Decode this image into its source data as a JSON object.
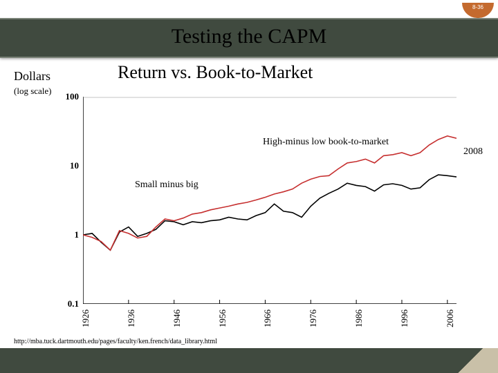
{
  "page_number": "8-36",
  "title": "Testing the CAPM",
  "subtitle": "Return vs. Book-to-Market",
  "y_axis": {
    "label": "Dollars",
    "sublabel": "(log scale)"
  },
  "annotations": {
    "hml": "High-minus low book-to-market",
    "smb": "Small minus big",
    "year_right": "2008"
  },
  "source": "http://mba.tuck.dartmouth.edu/pages/faculty/ken.french/data_library.html",
  "colors": {
    "header": "#404a3f",
    "page_cap": "#c46a2e",
    "series_hml": "#c62f2f",
    "series_smb": "#000000",
    "axis": "#000000",
    "bg": "#ffffff"
  },
  "chart": {
    "type": "line",
    "x_range": [
      1926,
      2008
    ],
    "y_log_range": [
      0.1,
      100
    ],
    "y_ticks": [
      0.1,
      1,
      10,
      100
    ],
    "x_ticks": [
      1926,
      1936,
      1946,
      1956,
      1966,
      1976,
      1986,
      1996,
      2006
    ],
    "line_width": 1.6,
    "series": {
      "smb": {
        "color": "#000000",
        "points": [
          [
            1926,
            1.0
          ],
          [
            1928,
            1.05
          ],
          [
            1930,
            0.78
          ],
          [
            1932,
            0.6
          ],
          [
            1934,
            1.1
          ],
          [
            1936,
            1.3
          ],
          [
            1938,
            0.95
          ],
          [
            1940,
            1.05
          ],
          [
            1942,
            1.2
          ],
          [
            1944,
            1.6
          ],
          [
            1946,
            1.55
          ],
          [
            1948,
            1.4
          ],
          [
            1950,
            1.55
          ],
          [
            1952,
            1.5
          ],
          [
            1954,
            1.6
          ],
          [
            1956,
            1.65
          ],
          [
            1958,
            1.8
          ],
          [
            1960,
            1.7
          ],
          [
            1962,
            1.65
          ],
          [
            1964,
            1.9
          ],
          [
            1966,
            2.1
          ],
          [
            1968,
            2.8
          ],
          [
            1970,
            2.2
          ],
          [
            1972,
            2.1
          ],
          [
            1974,
            1.8
          ],
          [
            1976,
            2.6
          ],
          [
            1978,
            3.4
          ],
          [
            1980,
            4.0
          ],
          [
            1982,
            4.6
          ],
          [
            1984,
            5.6
          ],
          [
            1986,
            5.2
          ],
          [
            1988,
            5.0
          ],
          [
            1990,
            4.3
          ],
          [
            1992,
            5.3
          ],
          [
            1994,
            5.5
          ],
          [
            1996,
            5.2
          ],
          [
            1998,
            4.6
          ],
          [
            2000,
            4.8
          ],
          [
            2002,
            6.3
          ],
          [
            2004,
            7.4
          ],
          [
            2006,
            7.2
          ],
          [
            2008,
            6.9
          ]
        ]
      },
      "hml": {
        "color": "#c62f2f",
        "points": [
          [
            1926,
            1.0
          ],
          [
            1928,
            0.92
          ],
          [
            1930,
            0.8
          ],
          [
            1932,
            0.6
          ],
          [
            1934,
            1.15
          ],
          [
            1936,
            1.05
          ],
          [
            1938,
            0.9
          ],
          [
            1940,
            0.95
          ],
          [
            1942,
            1.3
          ],
          [
            1944,
            1.7
          ],
          [
            1946,
            1.6
          ],
          [
            1948,
            1.75
          ],
          [
            1950,
            2.0
          ],
          [
            1952,
            2.1
          ],
          [
            1954,
            2.3
          ],
          [
            1956,
            2.45
          ],
          [
            1958,
            2.6
          ],
          [
            1960,
            2.8
          ],
          [
            1962,
            2.95
          ],
          [
            1964,
            3.2
          ],
          [
            1966,
            3.5
          ],
          [
            1968,
            3.9
          ],
          [
            1970,
            4.2
          ],
          [
            1972,
            4.6
          ],
          [
            1974,
            5.6
          ],
          [
            1976,
            6.4
          ],
          [
            1978,
            7.0
          ],
          [
            1980,
            7.2
          ],
          [
            1982,
            9.0
          ],
          [
            1984,
            11.0
          ],
          [
            1986,
            11.5
          ],
          [
            1988,
            12.5
          ],
          [
            1990,
            11.0
          ],
          [
            1992,
            14.0
          ],
          [
            1994,
            14.5
          ],
          [
            1996,
            15.5
          ],
          [
            1998,
            14.0
          ],
          [
            2000,
            15.5
          ],
          [
            2002,
            20.0
          ],
          [
            2004,
            24.0
          ],
          [
            2006,
            27.0
          ],
          [
            2008,
            25.0
          ]
        ]
      }
    }
  }
}
